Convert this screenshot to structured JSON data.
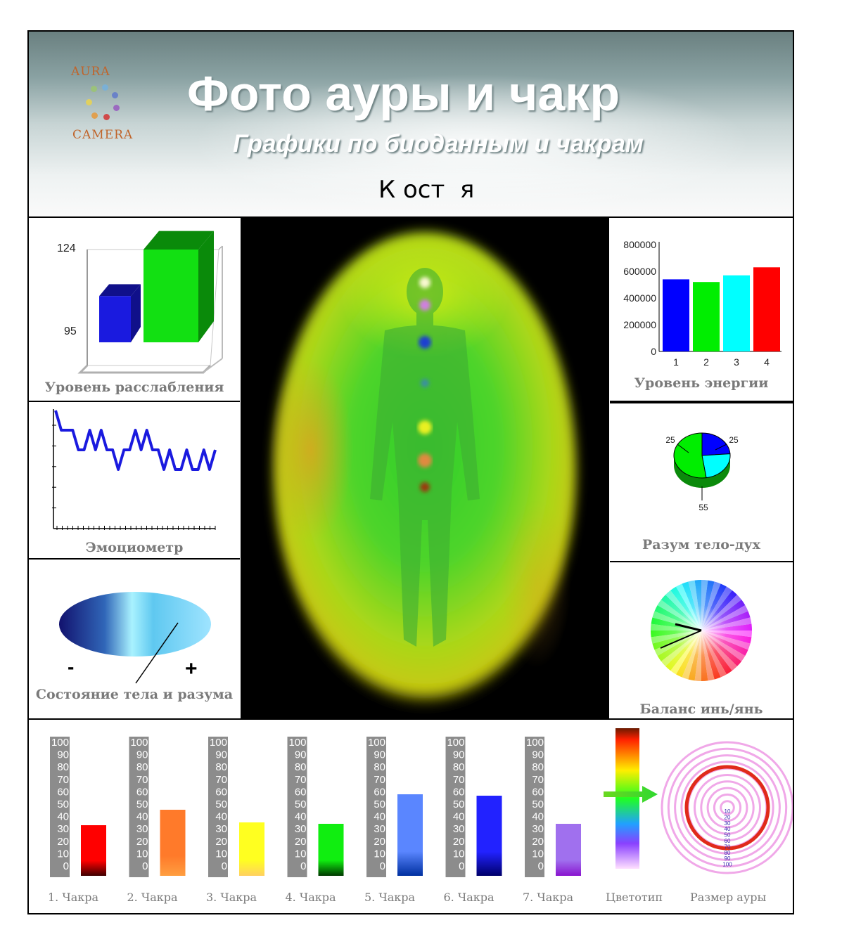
{
  "banner": {
    "logo_top": "AURA",
    "logo_bottom": "CAMERA",
    "title": "Фото  ауры и чакр",
    "subtitle": "Графики по биоданным и чакрам",
    "person_name": "К ост  я"
  },
  "colors": {
    "relax_blue": "#1a1adf",
    "relax_green": "#12e012",
    "emo_line": "#1a1adf",
    "label_gray": "#7a7a7a"
  },
  "panels": {
    "relaxation": "Уровень расслабления",
    "emotiometer": "Эмоциометр",
    "body_mind_state": "Состояние тела и разума",
    "energy": "Уровень энергии",
    "mind_body_spirit": "Разум тело-дух",
    "yin_yang": "Баланс инь/янь"
  },
  "chart_data": [
    {
      "type": "bar",
      "name": "relaxation",
      "values": [
        108,
        124
      ],
      "tick_labels": [
        "124",
        "95"
      ],
      "ylim": [
        95,
        124
      ]
    },
    {
      "type": "line",
      "name": "emotiometer",
      "values": [
        6,
        5,
        5,
        5,
        4,
        4,
        5,
        4,
        5,
        4,
        4,
        3,
        4,
        4,
        5,
        4,
        5,
        4,
        4,
        3,
        4,
        3,
        3,
        4,
        3,
        3,
        4,
        3,
        4
      ],
      "ylim": [
        0,
        6
      ]
    },
    {
      "type": "bar",
      "name": "energy",
      "categories": [
        "1",
        "2",
        "3",
        "4"
      ],
      "values": [
        540000,
        520000,
        570000,
        630000
      ],
      "colors": [
        "#0000ff",
        "#00ee00",
        "#00ffff",
        "#ff0000"
      ],
      "y_ticks": [
        "800000",
        "600000",
        "400000",
        "200000",
        "0"
      ],
      "ylim": [
        0,
        800000
      ]
    },
    {
      "type": "pie",
      "name": "mind-body-spirit",
      "values": [
        25,
        25,
        55
      ],
      "labels": [
        "25",
        "25",
        "55"
      ],
      "colors": [
        "#0000ff",
        "#00ffff",
        "#00ee00"
      ]
    },
    {
      "type": "bar",
      "name": "chakras",
      "scale_ticks": [
        "100",
        "90",
        "80",
        "70",
        "60",
        "50",
        "40",
        "30",
        "20",
        "10",
        "0"
      ],
      "categories": [
        "1. Чакра",
        "2. Чакра",
        "3. Чакра",
        "4. Чакра",
        "5. Чакра",
        "6. Чакра",
        "7. Чакра"
      ],
      "values": [
        36,
        47,
        38,
        37,
        58,
        57,
        37
      ],
      "ylim": [
        0,
        100
      ],
      "colors_top": [
        "#ff0000",
        "#ff7a2a",
        "#ffff20",
        "#10ee10",
        "#5a86ff",
        "#2222ff",
        "#a070ee"
      ],
      "colors_bottom": [
        "#400000",
        "#ff9e40",
        "#ffd060",
        "#003a00",
        "#0030a0",
        "#00006a",
        "#8a14cf"
      ]
    }
  ],
  "body_mind_signs": {
    "minus": "-",
    "plus": "+"
  },
  "color_type": {
    "label": "Цветотип"
  },
  "aura_size": {
    "label": "Размер ауры",
    "scale": [
      "10",
      "20",
      "30",
      "40",
      "50",
      "60",
      "70",
      "80",
      "90",
      "100"
    ]
  }
}
